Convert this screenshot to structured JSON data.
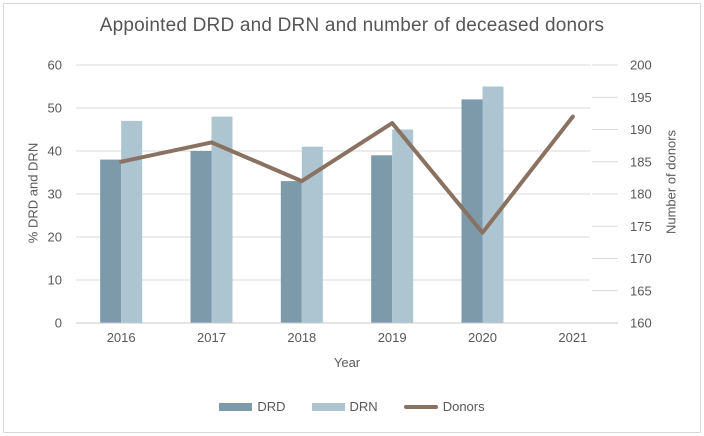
{
  "chart_data": {
    "type": "combo_bar_line",
    "title": "Appointed DRD and DRN and number of deceased donors",
    "categories": [
      "2016",
      "2017",
      "2018",
      "2019",
      "2020",
      "2021"
    ],
    "series": [
      {
        "name": "DRD",
        "kind": "bar",
        "axis": "left",
        "color": "#7d9aab",
        "values": [
          38,
          40,
          33,
          39,
          52,
          null
        ]
      },
      {
        "name": "DRN",
        "kind": "bar",
        "axis": "left",
        "color": "#adc4d1",
        "values": [
          47,
          48,
          41,
          45,
          55,
          null
        ]
      },
      {
        "name": "Donors",
        "kind": "line",
        "axis": "right",
        "color": "#8a7262",
        "values": [
          185,
          188,
          182,
          191,
          174,
          192
        ]
      }
    ],
    "xlabel": "Year",
    "ylabel_left": "% DRD and DRN",
    "ylabel_right": "Number of donors",
    "ylim_left": [
      0,
      60
    ],
    "ytick_step_left": 10,
    "ylim_right": [
      160,
      200
    ],
    "ytick_step_right": 5,
    "grid": true,
    "legend_position": "bottom",
    "colors": {
      "grid": "#d9d9d9",
      "axis_line": "#c9c9c9",
      "text": "#595959",
      "title_text": "#565656",
      "border": "#d8d8d8"
    }
  }
}
